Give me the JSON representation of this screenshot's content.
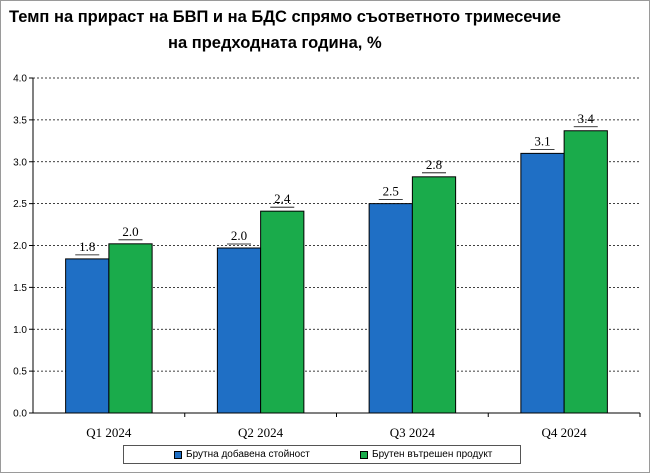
{
  "chart_data": {
    "type": "bar",
    "title": "Темп на прираст на БВП и на БДС спрямо съответното тримесечие на предходната година, %",
    "title_lines": [
      "Темп на прираст на БВП и на БДС спрямо съответното тримесечие",
      "на предходната година, %"
    ],
    "categories": [
      "Q1 2024",
      "Q2 2024",
      "Q3 2024",
      "Q4 2024"
    ],
    "series": [
      {
        "name": "Брутна добавена стойност",
        "values": [
          1.84,
          1.97,
          2.5,
          3.1
        ],
        "labels": [
          "1.8",
          "2.0",
          "2.5",
          "3.1"
        ],
        "color": "#1f6fc5"
      },
      {
        "name": "Брутен вътрешен продукт",
        "values": [
          2.02,
          2.41,
          2.82,
          3.37
        ],
        "labels": [
          "2.0",
          "2.4",
          "2.8",
          "3.4"
        ],
        "color": "#1aab4b"
      }
    ],
    "ylim": [
      0,
      4.0
    ],
    "yticks": [
      "0.0",
      "0.5",
      "1.0",
      "1.5",
      "2.0",
      "2.5",
      "3.0",
      "3.5",
      "4.0"
    ],
    "grid": true,
    "legend": "bottom",
    "xlabel": "",
    "ylabel": ""
  }
}
